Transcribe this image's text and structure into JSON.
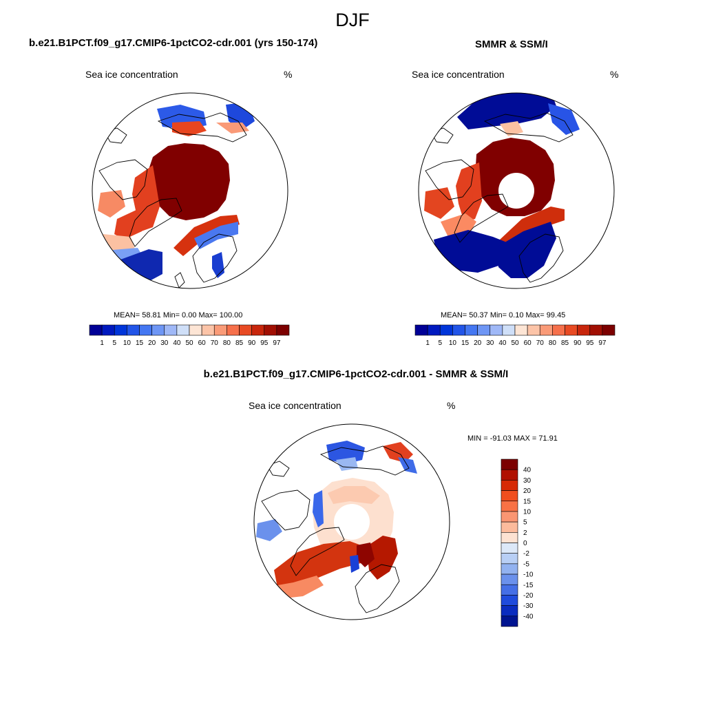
{
  "page": {
    "season": "DJF"
  },
  "panels": [
    {
      "title": "b.e21.B1PCT.f09_g17.CMIP6-1pctCO2-cdr.001 (yrs 150-174)",
      "variable": "Sea ice concentration",
      "units": "%",
      "stats": "MEAN=  58.81  Min=   0.00  Max= 100.00"
    },
    {
      "title": "SMMR & SSM/I",
      "variable": "Sea ice concentration",
      "units": "%",
      "stats": "MEAN=  50.37  Min=   0.10  Max=  99.45"
    },
    {
      "title": "b.e21.B1PCT.f09_g17.CMIP6-1pctCO2-cdr.001 - SMMR & SSM/I",
      "variable": "Sea ice concentration",
      "units": "%",
      "stats": "MIN = -91.03 MAX =  71.91"
    }
  ],
  "chart_data": [
    {
      "type": "heatmap",
      "title": "b.e21.B1PCT.f09_g17.CMIP6-1pctCO2-cdr.001 (yrs 150-174)",
      "variable": "Sea ice concentration",
      "units": "%",
      "projection": "north polar stereographic",
      "stats": {
        "mean": 58.81,
        "min": 0.0,
        "max": 100.0
      },
      "colorbar": {
        "orientation": "horizontal",
        "levels": [
          1,
          5,
          10,
          15,
          20,
          30,
          40,
          50,
          60,
          70,
          80,
          85,
          90,
          95,
          97
        ],
        "colors": [
          "#000096",
          "#0019bf",
          "#0035d9",
          "#2255e8",
          "#4477f2",
          "#6e96f5",
          "#9fb8f7",
          "#cfdff8",
          "#fde5d5",
          "#fcc4a8",
          "#fa9b78",
          "#f6704b",
          "#e84a23",
          "#c8260c",
          "#a10f03",
          "#7c0000"
        ]
      }
    },
    {
      "type": "heatmap",
      "title": "SMMR & SSM/I",
      "variable": "Sea ice concentration",
      "units": "%",
      "projection": "north polar stereographic",
      "stats": {
        "mean": 50.37,
        "min": 0.1,
        "max": 99.45
      },
      "colorbar": {
        "orientation": "horizontal",
        "levels": [
          1,
          5,
          10,
          15,
          20,
          30,
          40,
          50,
          60,
          70,
          80,
          85,
          90,
          95,
          97
        ],
        "colors": [
          "#000096",
          "#0019bf",
          "#0035d9",
          "#2255e8",
          "#4477f2",
          "#6e96f5",
          "#9fb8f7",
          "#cfdff8",
          "#fde5d5",
          "#fcc4a8",
          "#fa9b78",
          "#f6704b",
          "#e84a23",
          "#c8260c",
          "#a10f03",
          "#7c0000"
        ]
      }
    },
    {
      "type": "heatmap",
      "title": "b.e21.B1PCT.f09_g17.CMIP6-1pctCO2-cdr.001 - SMMR & SSM/I",
      "variable": "Sea ice concentration",
      "units": "%",
      "projection": "north polar stereographic",
      "stats": {
        "min": -91.03,
        "max": 71.91
      },
      "colorbar": {
        "orientation": "vertical",
        "levels": [
          40,
          30,
          20,
          15,
          10,
          5,
          2,
          0,
          -2,
          -5,
          -10,
          -15,
          -20,
          -30,
          -40
        ],
        "colors": [
          "#7c0000",
          "#b01000",
          "#d62a05",
          "#f04e1e",
          "#f87245",
          "#fa9672",
          "#fcbb9c",
          "#fde2d2",
          "#dce8f8",
          "#b8cff5",
          "#92b2f0",
          "#6b91ec",
          "#456fe6",
          "#1f4bdc",
          "#0a2cbf",
          "#001490"
        ]
      }
    }
  ]
}
